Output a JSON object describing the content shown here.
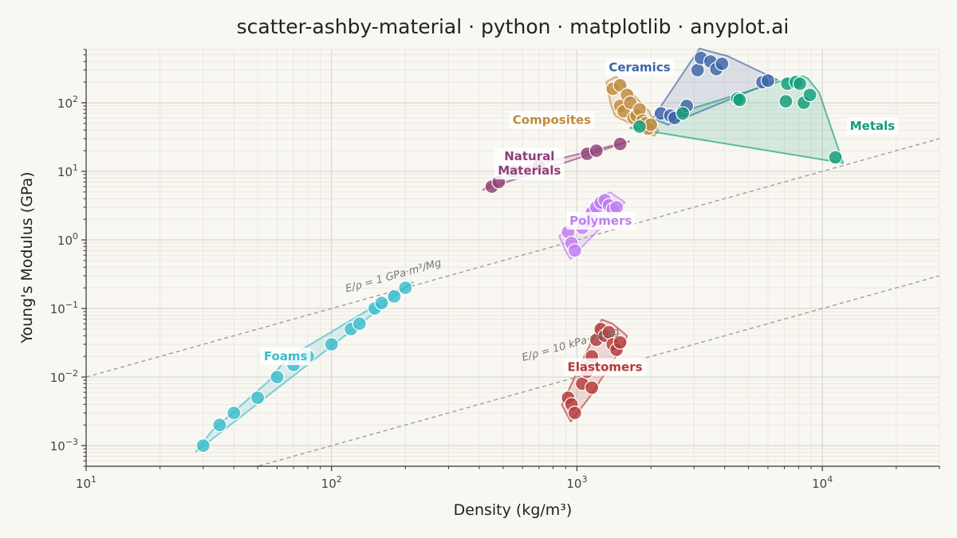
{
  "chart_data": {
    "type": "scatter",
    "title": "scatter-ashby-material · python · matplotlib · anyplot.ai",
    "xlabel": "Density (kg/m³)",
    "ylabel": "Young's Modulus (GPa)",
    "xscale": "log",
    "yscale": "log",
    "xlim": [
      10,
      30000
    ],
    "ylim": [
      0.0005,
      600
    ],
    "xticks": [
      {
        "value": 10,
        "base": "10",
        "exp": "1"
      },
      {
        "value": 100,
        "base": "10",
        "exp": "2"
      },
      {
        "value": 1000,
        "base": "10",
        "exp": "3"
      },
      {
        "value": 10000,
        "base": "10",
        "exp": "4"
      }
    ],
    "yticks": [
      {
        "value": 0.001,
        "base": "10",
        "exp": "−3"
      },
      {
        "value": 0.01,
        "base": "10",
        "exp": "−2"
      },
      {
        "value": 0.1,
        "base": "10",
        "exp": "−1"
      },
      {
        "value": 1,
        "base": "10",
        "exp": "0"
      },
      {
        "value": 10,
        "base": "10",
        "exp": "1"
      },
      {
        "value": 100,
        "base": "10",
        "exp": "2"
      }
    ],
    "grid": true,
    "legend": "none",
    "reference_lines": [
      {
        "label": "E/ρ = 1 GPa·m³/Mg",
        "ratio": 0.001
      },
      {
        "label": "E/ρ = 10 kPa·m³/kg",
        "ratio": 1e-05
      }
    ],
    "series": [
      {
        "name": "Foams",
        "color": "#3bbccb",
        "points": [
          [
            30,
            0.001
          ],
          [
            35,
            0.002
          ],
          [
            40,
            0.003
          ],
          [
            50,
            0.005
          ],
          [
            60,
            0.01
          ],
          [
            70,
            0.015
          ],
          [
            80,
            0.02
          ],
          [
            100,
            0.03
          ],
          [
            120,
            0.05
          ],
          [
            130,
            0.06
          ],
          [
            150,
            0.1
          ],
          [
            160,
            0.12
          ],
          [
            180,
            0.15
          ],
          [
            200,
            0.2
          ]
        ]
      },
      {
        "name": "Elastomers",
        "color": "#b33a3a",
        "points": [
          [
            920,
            0.005
          ],
          [
            950,
            0.004
          ],
          [
            980,
            0.003
          ],
          [
            1050,
            0.008
          ],
          [
            1100,
            0.012
          ],
          [
            1130,
            0.015
          ],
          [
            1150,
            0.02
          ],
          [
            1150,
            0.007
          ],
          [
            1200,
            0.035
          ],
          [
            1250,
            0.05
          ],
          [
            1300,
            0.04
          ],
          [
            1350,
            0.045
          ],
          [
            1400,
            0.03
          ],
          [
            1450,
            0.025
          ],
          [
            1500,
            0.032
          ]
        ]
      },
      {
        "name": "Polymers",
        "color": "#c07ef0",
        "points": [
          [
            920,
            1.3
          ],
          [
            950,
            0.9
          ],
          [
            980,
            0.7
          ],
          [
            1050,
            1.5
          ],
          [
            1100,
            1.8
          ],
          [
            1150,
            2.5
          ],
          [
            1200,
            3.0
          ],
          [
            1250,
            3.5
          ],
          [
            1300,
            3.8
          ],
          [
            1350,
            3.2
          ],
          [
            1400,
            2.8
          ],
          [
            1450,
            3.0
          ]
        ]
      },
      {
        "name": "Natural Materials",
        "color": "#8f3f75",
        "points": [
          [
            450,
            6
          ],
          [
            480,
            7
          ],
          [
            550,
            10
          ],
          [
            700,
            12
          ],
          [
            1100,
            18
          ],
          [
            1200,
            20
          ],
          [
            1500,
            25
          ]
        ]
      },
      {
        "name": "Composites",
        "color": "#c08a3e",
        "points": [
          [
            1400,
            160
          ],
          [
            1500,
            180
          ],
          [
            1500,
            90
          ],
          [
            1550,
            75
          ],
          [
            1600,
            130
          ],
          [
            1650,
            100
          ],
          [
            1700,
            60
          ],
          [
            1750,
            65
          ],
          [
            1800,
            80
          ],
          [
            1850,
            55
          ],
          [
            1900,
            50
          ],
          [
            1950,
            42
          ],
          [
            2000,
            48
          ]
        ]
      },
      {
        "name": "Ceramics",
        "color": "#3d64a8",
        "points": [
          [
            2200,
            70
          ],
          [
            2400,
            65
          ],
          [
            2500,
            60
          ],
          [
            2700,
            75
          ],
          [
            2800,
            90
          ],
          [
            3100,
            300
          ],
          [
            3200,
            450
          ],
          [
            3500,
            400
          ],
          [
            3700,
            310
          ],
          [
            3900,
            370
          ],
          [
            5700,
            200
          ],
          [
            6000,
            210
          ]
        ]
      },
      {
        "name": "Metals",
        "color": "#139d7a",
        "points": [
          [
            1800,
            45
          ],
          [
            2700,
            70
          ],
          [
            4500,
            115
          ],
          [
            4600,
            110
          ],
          [
            7100,
            105
          ],
          [
            7200,
            190
          ],
          [
            7800,
            200
          ],
          [
            8100,
            190
          ],
          [
            8400,
            100
          ],
          [
            8900,
            130
          ],
          [
            11300,
            16
          ]
        ]
      }
    ]
  }
}
